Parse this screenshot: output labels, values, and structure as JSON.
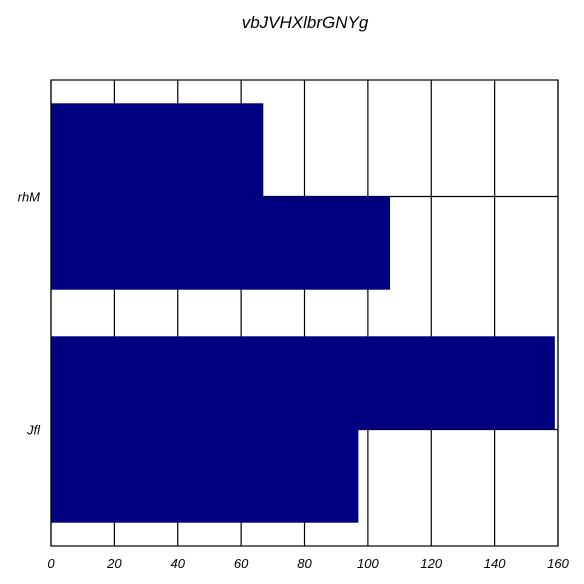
{
  "chart_data": {
    "type": "bar",
    "orientation": "horizontal",
    "title": "vbJVHXlbrGNYg",
    "xlabel": "",
    "ylabel": "",
    "categories": [
      "rhM",
      "Jfl"
    ],
    "series": [
      {
        "values": [
          67,
          159
        ]
      },
      {
        "values": [
          107,
          97
        ]
      }
    ],
    "xlim": [
      0,
      160
    ],
    "x_ticks": [
      0,
      20,
      40,
      60,
      80,
      100,
      120,
      140,
      160
    ],
    "grid": true,
    "colors": {
      "bar": "#000080",
      "grid": "#000000",
      "background": "#ffffff"
    }
  }
}
